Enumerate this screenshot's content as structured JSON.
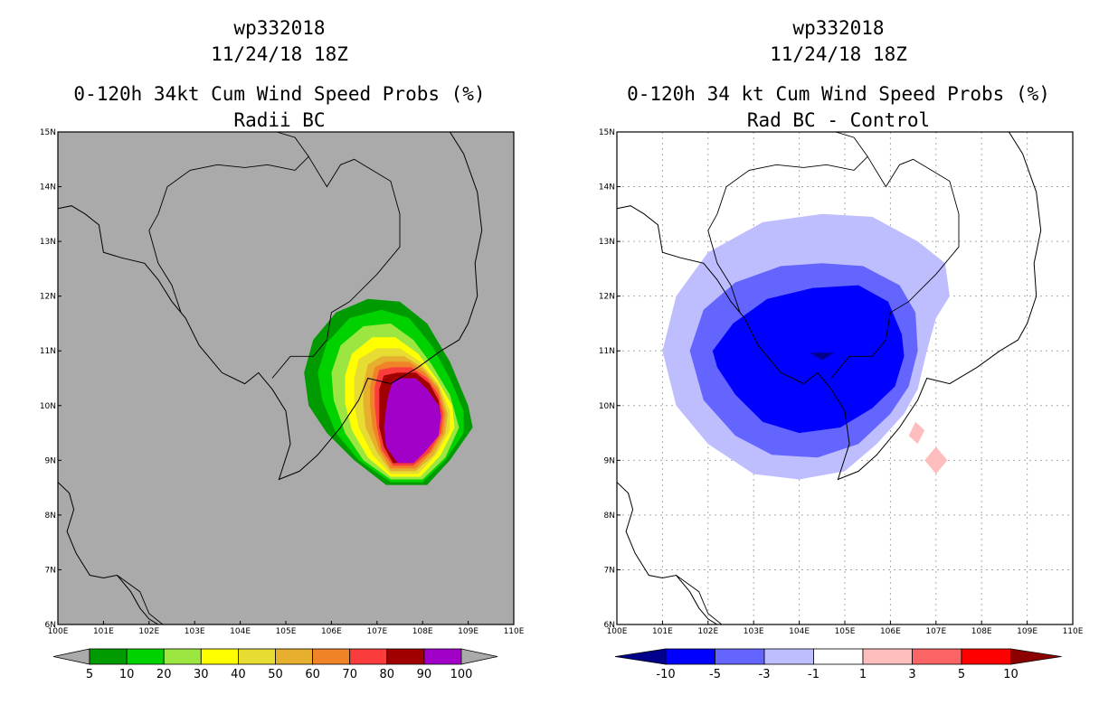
{
  "panels": [
    {
      "storm_id": "wp332018",
      "datetime": "11/24/18 18Z",
      "title": "0-120h 34kt Cum Wind Speed Probs (%)",
      "subtitle": "Radii BC"
    },
    {
      "storm_id": "wp332018",
      "datetime": "11/24/18 18Z",
      "title": "0-120h 34 kt Cum Wind Speed Probs (%)",
      "subtitle": "Rad BC - Control"
    }
  ],
  "chart_data": [
    {
      "type": "heatmap",
      "title": "0-120h 34kt Cum Wind Speed Probs (%)",
      "subtitle": "Radii BC",
      "x_ticks": [
        "100E",
        "101E",
        "102E",
        "103E",
        "104E",
        "105E",
        "106E",
        "107E",
        "108E",
        "109E",
        "110E"
      ],
      "y_ticks": [
        "6N",
        "7N",
        "8N",
        "9N",
        "10N",
        "11N",
        "12N",
        "13N",
        "14N",
        "15N"
      ],
      "xlim": [
        100,
        110
      ],
      "ylim": [
        6,
        15
      ],
      "grid": false,
      "background_color": "#aaaaaa",
      "colorbar": {
        "labels": [
          "5",
          "10",
          "20",
          "30",
          "40",
          "50",
          "60",
          "70",
          "80",
          "90",
          "100"
        ],
        "colors": [
          "#009b00",
          "#00d200",
          "#9be641",
          "#ffff00",
          "#e6dc32",
          "#e6af2d",
          "#f08228",
          "#fa3c3c",
          "#a00000",
          "#a000c8"
        ],
        "left_arrow_color": "#aaaaaa",
        "right_arrow_color": "#aaaaaa"
      },
      "contours": [
        {
          "level": 5,
          "color": "#009b00",
          "points": [
            [
              105.4,
              10.6
            ],
            [
              105.6,
              11.2
            ],
            [
              106.1,
              11.7
            ],
            [
              106.8,
              11.95
            ],
            [
              107.5,
              11.9
            ],
            [
              108.1,
              11.5
            ],
            [
              108.6,
              10.8
            ],
            [
              109.0,
              10.0
            ],
            [
              109.1,
              9.6
            ],
            [
              108.6,
              9.0
            ],
            [
              108.1,
              8.55
            ],
            [
              107.2,
              8.55
            ],
            [
              106.5,
              9.0
            ],
            [
              105.9,
              9.5
            ],
            [
              105.5,
              10.0
            ]
          ]
        },
        {
          "level": 10,
          "color": "#00d200",
          "points": [
            [
              105.7,
              10.6
            ],
            [
              105.9,
              11.15
            ],
            [
              106.4,
              11.6
            ],
            [
              107.1,
              11.75
            ],
            [
              107.7,
              11.6
            ],
            [
              108.2,
              11.1
            ],
            [
              108.6,
              10.5
            ],
            [
              108.9,
              9.9
            ],
            [
              108.9,
              9.5
            ],
            [
              108.5,
              9.0
            ],
            [
              108.0,
              8.6
            ],
            [
              107.3,
              8.6
            ],
            [
              106.6,
              9.0
            ],
            [
              106.1,
              9.5
            ],
            [
              105.8,
              10.1
            ]
          ]
        },
        {
          "level": 20,
          "color": "#9be641",
          "points": [
            [
              106.0,
              10.6
            ],
            [
              106.2,
              11.1
            ],
            [
              106.7,
              11.45
            ],
            [
              107.3,
              11.5
            ],
            [
              107.8,
              11.2
            ],
            [
              108.2,
              10.75
            ],
            [
              108.6,
              10.2
            ],
            [
              108.8,
              9.6
            ],
            [
              108.5,
              9.05
            ],
            [
              108.0,
              8.65
            ],
            [
              107.3,
              8.65
            ],
            [
              106.7,
              9.0
            ],
            [
              106.3,
              9.5
            ],
            [
              106.05,
              10.1
            ]
          ]
        },
        {
          "level": 30,
          "color": "#ffff00",
          "points": [
            [
              106.3,
              10.55
            ],
            [
              106.45,
              10.95
            ],
            [
              106.9,
              11.25
            ],
            [
              107.4,
              11.25
            ],
            [
              107.9,
              10.95
            ],
            [
              108.3,
              10.5
            ],
            [
              108.65,
              10.0
            ],
            [
              108.7,
              9.6
            ],
            [
              108.4,
              9.1
            ],
            [
              107.95,
              8.7
            ],
            [
              107.3,
              8.7
            ],
            [
              106.8,
              9.05
            ],
            [
              106.45,
              9.55
            ],
            [
              106.3,
              10.05
            ]
          ]
        },
        {
          "level": 40,
          "color": "#e6dc32",
          "points": [
            [
              106.5,
              10.5
            ],
            [
              106.6,
              10.85
            ],
            [
              107.0,
              11.05
            ],
            [
              107.5,
              11.05
            ],
            [
              107.95,
              10.8
            ],
            [
              108.35,
              10.4
            ],
            [
              108.6,
              9.9
            ],
            [
              108.6,
              9.55
            ],
            [
              108.3,
              9.1
            ],
            [
              107.9,
              8.75
            ],
            [
              107.3,
              8.75
            ],
            [
              106.9,
              9.1
            ],
            [
              106.6,
              9.6
            ],
            [
              106.5,
              10.0
            ]
          ]
        },
        {
          "level": 50,
          "color": "#e6af2d",
          "points": [
            [
              106.7,
              10.4
            ],
            [
              106.8,
              10.75
            ],
            [
              107.1,
              10.9
            ],
            [
              107.6,
              10.9
            ],
            [
              108.0,
              10.7
            ],
            [
              108.35,
              10.35
            ],
            [
              108.55,
              9.85
            ],
            [
              108.5,
              9.5
            ],
            [
              108.25,
              9.1
            ],
            [
              107.85,
              8.8
            ],
            [
              107.3,
              8.8
            ],
            [
              107.0,
              9.15
            ],
            [
              106.75,
              9.6
            ],
            [
              106.7,
              10.0
            ]
          ]
        },
        {
          "level": 60,
          "color": "#f08228",
          "points": [
            [
              106.85,
              10.35
            ],
            [
              106.95,
              10.7
            ],
            [
              107.2,
              10.8
            ],
            [
              107.7,
              10.8
            ],
            [
              108.05,
              10.6
            ],
            [
              108.35,
              10.3
            ],
            [
              108.5,
              9.85
            ],
            [
              108.45,
              9.5
            ],
            [
              108.2,
              9.15
            ],
            [
              107.85,
              8.85
            ],
            [
              107.3,
              8.85
            ],
            [
              107.05,
              9.2
            ],
            [
              106.9,
              9.6
            ],
            [
              106.85,
              10.0
            ]
          ]
        },
        {
          "level": 70,
          "color": "#fa3c3c",
          "points": [
            [
              106.95,
              10.35
            ],
            [
              107.05,
              10.65
            ],
            [
              107.35,
              10.7
            ],
            [
              107.75,
              10.7
            ],
            [
              108.1,
              10.5
            ],
            [
              108.35,
              10.2
            ],
            [
              108.45,
              9.85
            ],
            [
              108.4,
              9.5
            ],
            [
              108.15,
              9.15
            ],
            [
              107.8,
              8.9
            ],
            [
              107.35,
              8.9
            ],
            [
              107.1,
              9.2
            ],
            [
              107.0,
              9.6
            ],
            [
              106.95,
              10.0
            ]
          ]
        },
        {
          "level": 80,
          "color": "#a00000",
          "points": [
            [
              107.05,
              10.3
            ],
            [
              107.15,
              10.55
            ],
            [
              107.45,
              10.6
            ],
            [
              107.85,
              10.6
            ],
            [
              108.15,
              10.4
            ],
            [
              108.35,
              10.1
            ],
            [
              108.4,
              9.8
            ],
            [
              108.35,
              9.5
            ],
            [
              108.1,
              9.2
            ],
            [
              107.8,
              8.95
            ],
            [
              107.35,
              8.95
            ],
            [
              107.15,
              9.25
            ],
            [
              107.05,
              9.6
            ],
            [
              107.05,
              10.0
            ]
          ]
        },
        {
          "level": 90,
          "color": "#a000c8",
          "points": [
            [
              107.25,
              10.2
            ],
            [
              107.35,
              10.45
            ],
            [
              107.55,
              10.5
            ],
            [
              107.85,
              10.5
            ],
            [
              108.1,
              10.3
            ],
            [
              108.35,
              10.0
            ],
            [
              108.4,
              9.8
            ],
            [
              108.35,
              9.45
            ],
            [
              108.05,
              9.15
            ],
            [
              107.8,
              8.95
            ],
            [
              107.45,
              8.95
            ],
            [
              107.2,
              9.25
            ],
            [
              107.15,
              9.6
            ],
            [
              107.2,
              9.95
            ]
          ]
        }
      ]
    },
    {
      "type": "heatmap",
      "title": "0-120h 34 kt Cum Wind Speed Probs (%)",
      "subtitle": "Rad BC - Control",
      "x_ticks": [
        "100E",
        "101E",
        "102E",
        "103E",
        "104E",
        "105E",
        "106E",
        "107E",
        "108E",
        "109E",
        "110E"
      ],
      "y_ticks": [
        "6N",
        "7N",
        "8N",
        "9N",
        "10N",
        "11N",
        "12N",
        "13N",
        "14N",
        "15N"
      ],
      "xlim": [
        100,
        110
      ],
      "ylim": [
        6,
        15
      ],
      "grid": true,
      "background_color": "#ffffff",
      "colorbar": {
        "labels": [
          "-10",
          "-5",
          "-3",
          "-1",
          "1",
          "3",
          "5",
          "10"
        ],
        "colors": [
          "#0000ff",
          "#6464ff",
          "#bebeff",
          "#ffffff",
          "#ffbebe",
          "#fa6464",
          "#ff0000"
        ],
        "left_arrow_color": "#00008c",
        "right_arrow_color": "#8c0000"
      },
      "contours": [
        {
          "level": -1,
          "color": "#bebeff",
          "points": [
            [
              101.0,
              11.0
            ],
            [
              101.3,
              12.0
            ],
            [
              102.0,
              12.8
            ],
            [
              103.2,
              13.35
            ],
            [
              104.5,
              13.5
            ],
            [
              105.6,
              13.45
            ],
            [
              106.6,
              13.0
            ],
            [
              107.2,
              12.6
            ],
            [
              107.3,
              12.0
            ],
            [
              107.0,
              11.6
            ],
            [
              106.8,
              11.0
            ],
            [
              106.6,
              10.3
            ],
            [
              106.3,
              9.85
            ],
            [
              105.7,
              9.3
            ],
            [
              105.0,
              8.8
            ],
            [
              104.0,
              8.65
            ],
            [
              103.0,
              8.75
            ],
            [
              102.0,
              9.3
            ],
            [
              101.3,
              10.0
            ]
          ]
        },
        {
          "level": -3,
          "color": "#6464ff",
          "points": [
            [
              101.6,
              11.0
            ],
            [
              101.9,
              11.75
            ],
            [
              102.6,
              12.25
            ],
            [
              103.6,
              12.55
            ],
            [
              104.5,
              12.6
            ],
            [
              105.4,
              12.55
            ],
            [
              106.2,
              12.2
            ],
            [
              106.55,
              11.7
            ],
            [
              106.6,
              11.0
            ],
            [
              106.4,
              10.35
            ],
            [
              106.0,
              9.85
            ],
            [
              105.3,
              9.3
            ],
            [
              104.4,
              9.05
            ],
            [
              103.4,
              9.1
            ],
            [
              102.6,
              9.45
            ],
            [
              101.9,
              10.1
            ]
          ]
        },
        {
          "level": -5,
          "color": "#0000ff",
          "points": [
            [
              102.1,
              11.0
            ],
            [
              102.55,
              11.5
            ],
            [
              103.3,
              11.95
            ],
            [
              104.3,
              12.15
            ],
            [
              105.3,
              12.2
            ],
            [
              105.95,
              11.9
            ],
            [
              106.25,
              11.3
            ],
            [
              106.3,
              10.9
            ],
            [
              106.1,
              10.35
            ],
            [
              105.6,
              9.95
            ],
            [
              104.9,
              9.6
            ],
            [
              104.0,
              9.5
            ],
            [
              103.2,
              9.7
            ],
            [
              102.6,
              10.2
            ],
            [
              102.2,
              10.7
            ]
          ]
        },
        {
          "level": -10,
          "color": "#00008c",
          "points": [
            [
              104.3,
              10.95
            ],
            [
              104.5,
              10.85
            ],
            [
              104.7,
              10.95
            ]
          ]
        },
        {
          "level": 1,
          "color": "#ffbebe",
          "points": [
            [
              106.4,
              9.45
            ],
            [
              106.55,
              9.7
            ],
            [
              106.75,
              9.55
            ],
            [
              106.6,
              9.3
            ]
          ]
        },
        {
          "level": 1,
          "color": "#ffbebe",
          "points": [
            [
              106.75,
              9.0
            ],
            [
              107.0,
              9.25
            ],
            [
              107.25,
              9.0
            ],
            [
              107.0,
              8.75
            ]
          ]
        }
      ]
    }
  ]
}
